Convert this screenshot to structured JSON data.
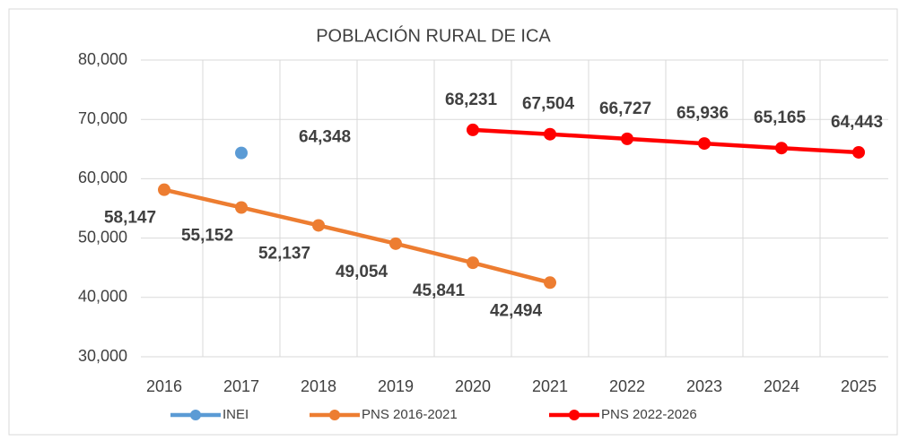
{
  "chart_data": {
    "type": "line",
    "title": "POBLACIÓN RURAL DE ICA",
    "categories": [
      "2016",
      "2017",
      "2018",
      "2019",
      "2020",
      "2021",
      "2022",
      "2023",
      "2024",
      "2025"
    ],
    "series": [
      {
        "name": "INEI",
        "color": "#5b9bd5",
        "values": [
          null,
          64348,
          null,
          null,
          null,
          null,
          null,
          null,
          null,
          null
        ],
        "value_labels": [
          null,
          "64,348",
          null,
          null,
          null,
          null,
          null,
          null,
          null,
          null
        ]
      },
      {
        "name": "PNS 2016-2021",
        "color": "#ed7d31",
        "values": [
          58147,
          55152,
          52137,
          49054,
          45841,
          42494,
          null,
          null,
          null,
          null
        ],
        "value_labels": [
          "58,147",
          "55,152",
          "52,137",
          "49,054",
          "45,841",
          "42,494",
          null,
          null,
          null,
          null
        ]
      },
      {
        "name": "PNS 2022-2026",
        "color": "#ff0000",
        "values": [
          null,
          null,
          null,
          null,
          68231,
          67504,
          66727,
          65936,
          65165,
          64443
        ],
        "value_labels": [
          null,
          null,
          null,
          null,
          "68,231",
          "67,504",
          "66,727",
          "65,936",
          "65,165",
          "64,443"
        ]
      }
    ],
    "ylim": [
      30000,
      80000
    ],
    "yticks": [
      {
        "value": 30000,
        "label": "30,000"
      },
      {
        "value": 40000,
        "label": "40,000"
      },
      {
        "value": 50000,
        "label": "50,000"
      },
      {
        "value": 60000,
        "label": "60,000"
      },
      {
        "value": 70000,
        "label": "70,000"
      },
      {
        "value": 80000,
        "label": "80,000"
      }
    ],
    "grid": true
  }
}
